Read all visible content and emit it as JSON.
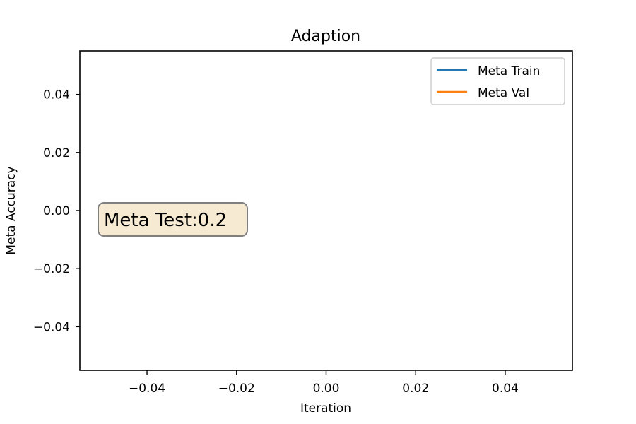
{
  "chart_data": {
    "type": "line",
    "title": "Adaption",
    "xlabel": "Iteration",
    "ylabel": "Meta Accuracy",
    "xlim": [
      -0.055,
      0.055
    ],
    "ylim": [
      -0.055,
      0.055
    ],
    "xticks": [
      -0.04,
      -0.02,
      0.0,
      0.02,
      0.04
    ],
    "xtick_labels": [
      "−0.04",
      "−0.02",
      "0.00",
      "0.02",
      "0.04"
    ],
    "yticks": [
      -0.04,
      -0.02,
      0.0,
      0.02,
      0.04
    ],
    "ytick_labels": [
      "−0.04",
      "−0.02",
      "0.00",
      "0.02",
      "0.04"
    ],
    "grid": false,
    "legend_position": "top-right",
    "series": [
      {
        "name": "Meta Train",
        "color": "#1f77b4",
        "x": [],
        "y": []
      },
      {
        "name": "Meta Val",
        "color": "#ff7f0e",
        "x": [],
        "y": []
      }
    ],
    "annotations": [
      {
        "text": "Meta Test:0.2",
        "box_fill": "#f6ead3",
        "box_edge": "#808080"
      }
    ]
  }
}
